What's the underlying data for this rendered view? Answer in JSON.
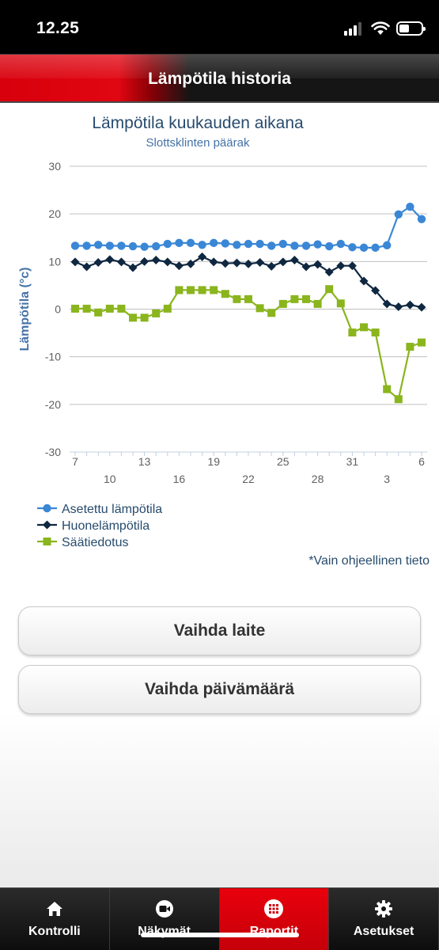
{
  "status_bar": {
    "time": "12.25"
  },
  "header": {
    "title": "Lämpötila historia"
  },
  "chart_data": {
    "type": "line",
    "title": "Lämpötila kuukauden aikana",
    "subtitle": "Slottsklinten päärak",
    "ylabel": "Lämpötila (°c)",
    "ylim": [
      -30,
      30
    ],
    "yticks": [
      30,
      20,
      10,
      0,
      -10,
      -20,
      -30
    ],
    "x": [
      7,
      8,
      9,
      10,
      11,
      12,
      13,
      14,
      15,
      16,
      17,
      18,
      19,
      20,
      21,
      22,
      23,
      24,
      25,
      26,
      27,
      28,
      29,
      30,
      31,
      1,
      2,
      3,
      4,
      5,
      6
    ],
    "x_tick_labels_row1": [
      {
        "i": 0,
        "label": "7"
      },
      {
        "i": 6,
        "label": "13"
      },
      {
        "i": 12,
        "label": "19"
      },
      {
        "i": 18,
        "label": "25"
      },
      {
        "i": 24,
        "label": "31"
      },
      {
        "i": 30,
        "label": "6"
      }
    ],
    "x_tick_labels_row2": [
      {
        "i": 3,
        "label": "10"
      },
      {
        "i": 9,
        "label": "16"
      },
      {
        "i": 15,
        "label": "22"
      },
      {
        "i": 21,
        "label": "28"
      },
      {
        "i": 27,
        "label": "3"
      }
    ],
    "grid": true,
    "legend_placement": "bottom-left",
    "series": [
      {
        "name": "Asetettu lämpötila",
        "color": "#3a87d6",
        "marker": "circle",
        "values": [
          13.3,
          13.3,
          13.5,
          13.3,
          13.3,
          13.2,
          13.1,
          13.2,
          13.7,
          13.9,
          13.9,
          13.5,
          13.9,
          13.8,
          13.5,
          13.7,
          13.7,
          13.3,
          13.7,
          13.3,
          13.3,
          13.6,
          13.2,
          13.7,
          13.0,
          12.9,
          12.9,
          13.4,
          19.9,
          21.5,
          18.9
        ]
      },
      {
        "name": "Huonelämpötila",
        "color": "#0f2740",
        "marker": "diamond",
        "values": [
          9.9,
          8.9,
          9.8,
          10.4,
          9.9,
          8.7,
          10.0,
          10.3,
          9.9,
          9.1,
          9.5,
          11.0,
          9.9,
          9.6,
          9.7,
          9.5,
          9.8,
          9.0,
          9.9,
          10.3,
          8.9,
          9.4,
          7.8,
          9.1,
          9.1,
          5.9,
          3.9,
          1.1,
          0.5,
          0.9,
          0.4
        ]
      },
      {
        "name": "Säätiedotus",
        "color": "#8ab51d",
        "marker": "square",
        "values": [
          0.1,
          0.1,
          -0.7,
          0.1,
          0.1,
          -1.8,
          -1.8,
          -0.9,
          0.1,
          4.0,
          4.0,
          4.0,
          4.0,
          3.2,
          2.1,
          2.1,
          0.2,
          -0.8,
          1.1,
          2.1,
          2.1,
          1.1,
          4.2,
          1.2,
          -4.9,
          -3.8,
          -4.9,
          -16.8,
          -18.9,
          -7.9,
          -7.0
        ]
      }
    ]
  },
  "note": "*Vain ohjeellinen tieto",
  "buttons": {
    "change_device": "Vaihda laite",
    "change_date": "Vaihda päivämäärä"
  },
  "tabs": [
    {
      "label": "Kontrolli",
      "icon": "home-icon",
      "active": false
    },
    {
      "label": "Näkymät",
      "icon": "video-camera-icon",
      "active": false
    },
    {
      "label": "Raportit",
      "icon": "grid-icon",
      "active": true
    },
    {
      "label": "Asetukset",
      "icon": "gear-icon",
      "active": false
    }
  ]
}
